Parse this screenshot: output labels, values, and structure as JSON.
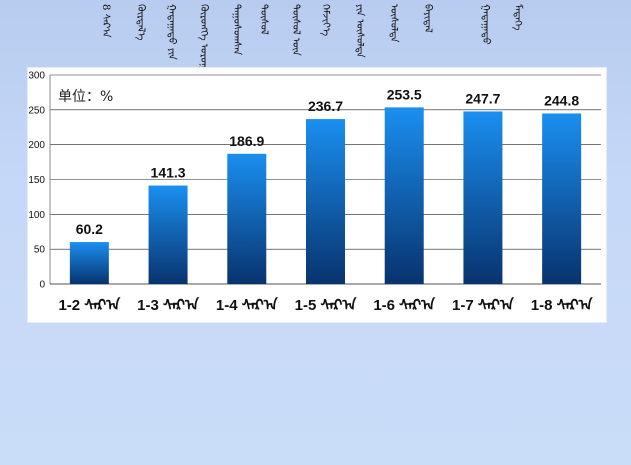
{
  "header": {
    "title_words": [
      "8 ᠰᠠᠷ᠎ᠠ",
      "ᠬᠦᠷᠲᠡᠯ᠎ᠡ",
      "ᠭᠠᠳᠠᠭᠠᠳᠤ ᠶᠢᠨ",
      "ᠬᠥᠷᠥᠩᠭᠡ ᠣᠷᠣᠭᠤᠯᠤᠯᠲᠠ",
      "ᠳᠠᠭᠤᠰᠤᠭᠰᠠᠨ",
      "ᠳᠦᠰᠦᠯ",
      "ᠲᠥᠰᠥᠯ ᠦᠨ",
      "ᠬᠡᠮᠵᠢᠶ᠎ᠡ",
      "ᠶᠢᠨ ᠥᠰᠦᠯᠲᠡ",
      "ᠦᠰᠦᠯᠲᠡ",
      "ᠪᠠᠶᠢᠳᠠᠯ",
      "ᠭᠠᠳᠠᠭᠠᠳᠤ",
      "ᠮᠡᠳᠡᠭᠡ"
    ]
  },
  "chart_data": {
    "type": "bar",
    "unit_label": "单位：%",
    "categories": [
      "1-2 ᠰᠠᠷ᠎ᠠ",
      "1-3 ᠰᠠᠷ᠎ᠠ",
      "1-4 ᠰᠠᠷ᠎ᠠ",
      "1-5 ᠰᠠᠷ᠎ᠠ",
      "1-6 ᠰᠠᠷ᠎ᠠ",
      "1-7 ᠰᠠᠷ᠎ᠠ",
      "1-8 ᠰᠠᠷ᠎ᠠ"
    ],
    "values": [
      60.2,
      141.3,
      186.9,
      236.7,
      253.5,
      247.7,
      244.8
    ],
    "value_labels": [
      "60.2",
      "141.3",
      "186.9",
      "236.7",
      "253.5",
      "247.7",
      "244.8"
    ],
    "yticks": [
      0,
      50,
      100,
      150,
      200,
      250,
      300
    ],
    "ylim": [
      0,
      300
    ],
    "grid": true,
    "legend": "none",
    "colors": {
      "bar_top": "#1a8ff0",
      "bar_bottom": "#08336e",
      "grid": "#222222"
    }
  }
}
